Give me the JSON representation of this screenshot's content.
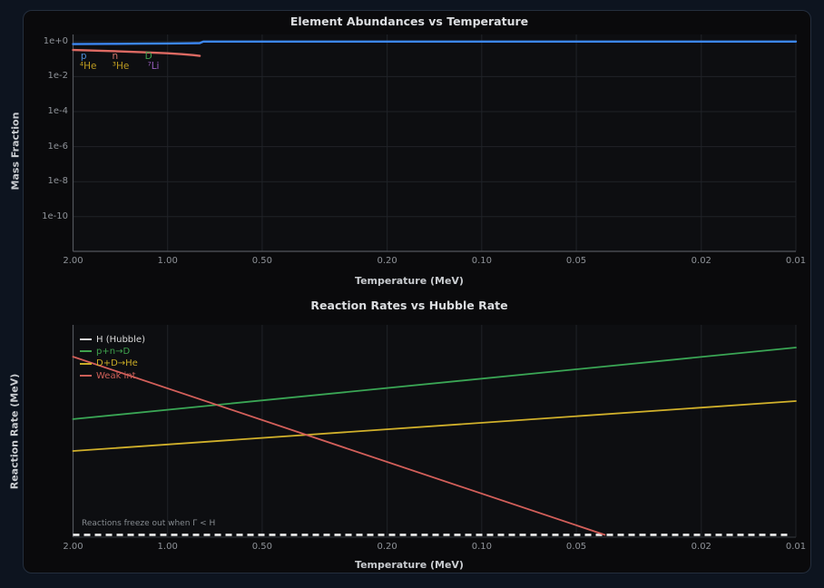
{
  "page": {
    "bg": "#0d141f",
    "panel_bg": "#0a0a0c",
    "panel_border": "#242e3d",
    "plot_bg": "#0d0e11",
    "grid_color": "#202328",
    "spine_color": "#53565c",
    "tick_color": "#8f9399",
    "title_color": "#dcdee1",
    "axis_label_color": "#c9ccd0",
    "note_color": "#868b90"
  },
  "chart_data": [
    {
      "type": "line",
      "title": "Element Abundances vs Temperature",
      "xlabel": "Temperature (MeV)",
      "ylabel": "Mass Fraction",
      "x_scale": "log-reversed",
      "y_scale": "log",
      "xlim": [
        2.0,
        0.01
      ],
      "ylim": [
        1e-12,
        1.0
      ],
      "grid": true,
      "x_ticks": [
        {
          "label": "2.00",
          "t": 2.0
        },
        {
          "label": "1.00",
          "t": 1.0
        },
        {
          "label": "0.50",
          "t": 0.5
        },
        {
          "label": "0.20",
          "t": 0.2
        },
        {
          "label": "0.10",
          "t": 0.1
        },
        {
          "label": "0.05",
          "t": 0.05
        },
        {
          "label": "0.02",
          "t": 0.02
        },
        {
          "label": "0.01",
          "t": 0.01
        }
      ],
      "y_ticks": [
        {
          "label": "1e+0",
          "v": 1.0
        },
        {
          "label": "1e-2",
          "v": 0.01
        },
        {
          "label": "1e-4",
          "v": 0.0001
        },
        {
          "label": "1e-6",
          "v": 1e-06
        },
        {
          "label": "1e-8",
          "v": 1e-08
        },
        {
          "label": "1e-10",
          "v": 1e-10
        }
      ],
      "series": [
        {
          "name": "p",
          "color": "#3c87f2",
          "points": [
            [
              2.0,
              0.72
            ],
            [
              1.5,
              0.74
            ],
            [
              1.2,
              0.76
            ],
            [
              1.0,
              0.78
            ],
            [
              0.85,
              0.8
            ],
            [
              0.79,
              0.82
            ],
            [
              0.77,
              1.0
            ],
            [
              0.01,
              1.0
            ]
          ]
        },
        {
          "name": "n",
          "color": "#dd6a63",
          "points": [
            [
              2.0,
              0.33
            ],
            [
              1.5,
              0.285
            ],
            [
              1.2,
              0.245
            ],
            [
              1.0,
              0.215
            ],
            [
              0.9,
              0.19
            ],
            [
              0.83,
              0.17
            ],
            [
              0.79,
              0.152
            ]
          ]
        }
      ],
      "annotations": [
        {
          "text": "p",
          "color": "#4d8bd6",
          "t": 1.85,
          "row": 1
        },
        {
          "text": "n",
          "color": "#d4736a",
          "t": 1.47,
          "row": 1
        },
        {
          "text": "D",
          "color": "#3fa34f",
          "t": 1.15,
          "row": 1
        },
        {
          "text": "⁴He",
          "color": "#bd9b20",
          "t": 1.79,
          "row": 2
        },
        {
          "text": "³He",
          "color": "#bd9b20",
          "t": 1.41,
          "row": 2
        },
        {
          "text": "⁷Li",
          "color": "#9a5fc0",
          "t": 1.11,
          "row": 2
        }
      ]
    },
    {
      "type": "line",
      "title": "Reaction Rates vs Hubble Rate",
      "xlabel": "Temperature (MeV)",
      "ylabel": "Reaction Rate (MeV)",
      "x_scale": "log-reversed",
      "y_scale": "log (no tick labels shown)",
      "y_encoding": "fraction of plot height, 0 = bottom, 1 = top",
      "xlim": [
        2.0,
        0.01
      ],
      "grid": true,
      "note": "Reactions freeze out when Γ < H",
      "x_ticks": [
        {
          "label": "2.00",
          "t": 2.0
        },
        {
          "label": "1.00",
          "t": 1.0
        },
        {
          "label": "0.50",
          "t": 0.5
        },
        {
          "label": "0.20",
          "t": 0.2
        },
        {
          "label": "0.10",
          "t": 0.1
        },
        {
          "label": "0.05",
          "t": 0.05
        },
        {
          "label": "0.02",
          "t": 0.02
        },
        {
          "label": "0.01",
          "t": 0.01
        }
      ],
      "legend": [
        {
          "label": "H (Hubble)",
          "color": "#dcdcdc"
        },
        {
          "label": "p+n→D",
          "color": "#3fa24d"
        },
        {
          "label": "D+D→He",
          "color": "#c9ac26"
        },
        {
          "label": "Weak int.",
          "color": "#cd5f58"
        }
      ],
      "series": [
        {
          "name": "H (Hubble)",
          "color": "#ededed",
          "style": "dashed",
          "points": [
            [
              2.0,
              0.011
            ],
            [
              0.0104,
              0.011
            ]
          ]
        },
        {
          "name": "p+n→D",
          "color": "#3aa655",
          "points": [
            [
              2.0,
              0.556
            ],
            [
              0.01,
              0.893
            ]
          ]
        },
        {
          "name": "D+D→He",
          "color": "#d0b02b",
          "points": [
            [
              2.0,
              0.406
            ],
            [
              0.01,
              0.641
            ]
          ]
        },
        {
          "name": "Weak int.",
          "color": "#d35f5a",
          "points": [
            [
              2.0,
              0.85
            ],
            [
              0.0406,
              0.011
            ]
          ]
        }
      ]
    }
  ]
}
